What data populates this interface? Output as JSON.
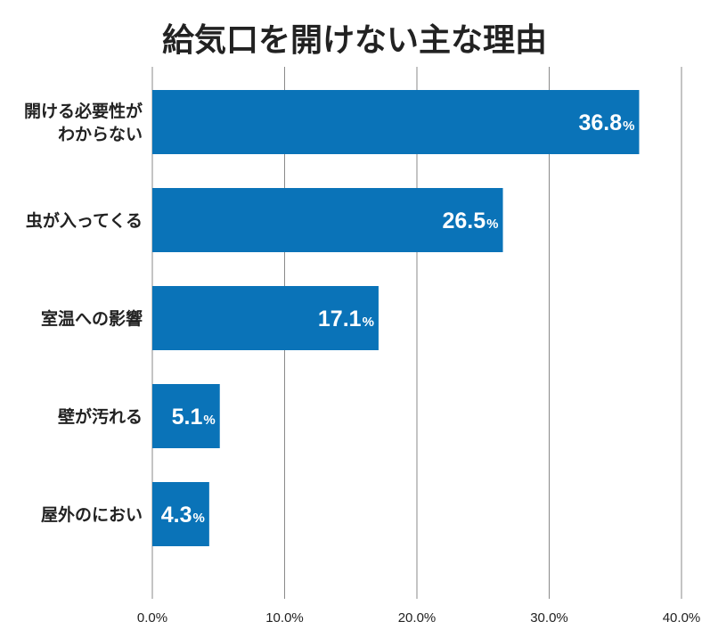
{
  "chart_data": {
    "type": "bar",
    "orientation": "horizontal",
    "title": "給気口を開けない主な理由",
    "categories": [
      [
        "開ける必要性が",
        "わからない"
      ],
      [
        "虫が入ってくる"
      ],
      [
        "室温への影響"
      ],
      [
        "壁が汚れる"
      ],
      [
        "屋外のにおい"
      ]
    ],
    "values": [
      36.8,
      26.5,
      17.1,
      5.1,
      4.3
    ],
    "value_labels": [
      "36.8",
      "26.5",
      "17.1",
      "5.1",
      "4.3"
    ],
    "value_unit": "%",
    "xlim": [
      0,
      40
    ],
    "xticks": [
      "0.0%",
      "10.0%",
      "20.0%",
      "30.0%",
      "40.0%"
    ],
    "grid": true,
    "bar_color": "#0a73b8",
    "label_color": "#ffffff"
  }
}
